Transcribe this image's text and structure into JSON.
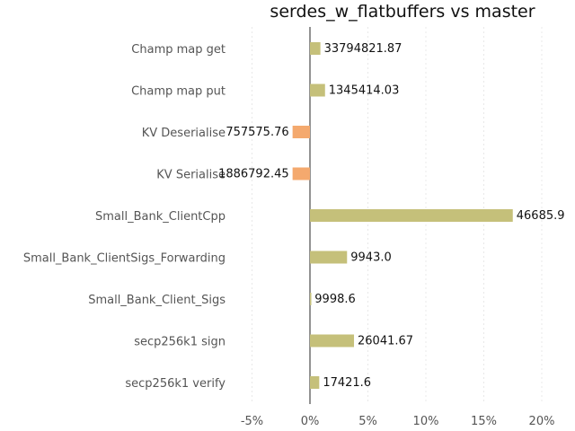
{
  "chart_data": {
    "type": "bar",
    "orientation": "horizontal",
    "title": "serdes_w_flatbuffers vs master",
    "categories": [
      "Champ map get",
      "Champ map put",
      "KV Deserialise",
      "KV Serialise",
      "Small_Bank_ClientCpp",
      "Small_Bank_ClientSigs_Forwarding",
      "Small_Bank_Client_Sigs",
      "secp256k1 sign",
      "secp256k1 verify"
    ],
    "values": [
      0.9,
      1.3,
      -1.5,
      -1.5,
      17.5,
      3.2,
      0.1,
      3.8,
      0.8
    ],
    "value_labels": [
      "33794821.87",
      "1345414.03",
      "757575.76",
      "1886792.45",
      "46685.9",
      "9943.0",
      "9998.6",
      "26041.67",
      "17421.6"
    ],
    "x_ticks": [
      -5,
      0,
      5,
      10,
      15,
      20
    ],
    "x_tick_labels": [
      "-5%",
      "0%",
      "5%",
      "10%",
      "15%",
      "20%"
    ],
    "xlim": [
      -6.4,
      21.2
    ],
    "grid": true,
    "colors": {
      "positive": "#c5c07a",
      "negative": "#f4a96e",
      "zero_line": "#777777",
      "grid": "#e8e8e8"
    }
  }
}
